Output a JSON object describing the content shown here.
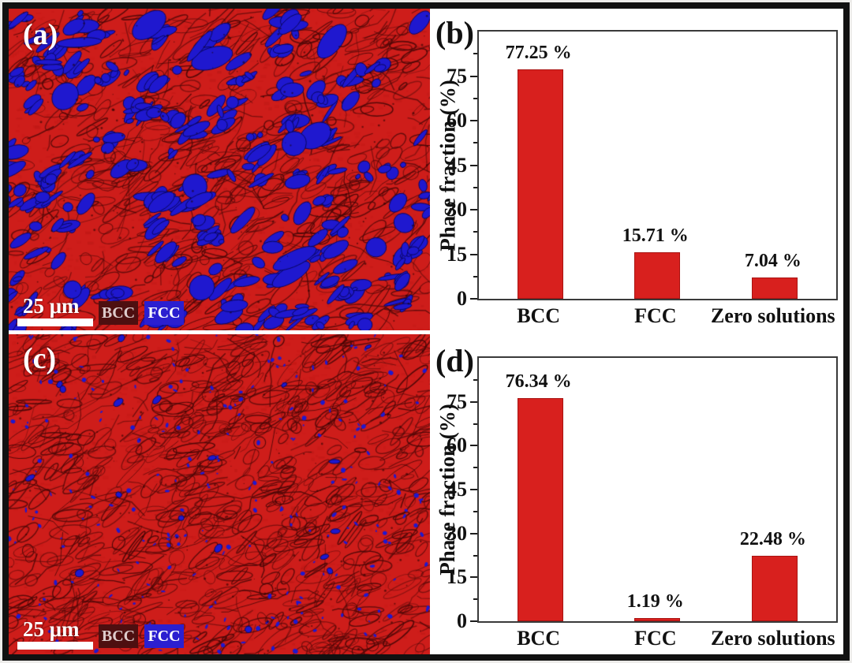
{
  "figure_caption_labels": {
    "a": "(a)",
    "b": "(b)",
    "c": "(c)",
    "d": "(d)"
  },
  "panels": {
    "a": {
      "label": "(a)",
      "type": "ebsd-phase-map",
      "scale_bar_text": "25 μm",
      "legend": [
        {
          "label": "BCC",
          "bg": "#4e0f10",
          "text_color": "#decccc"
        },
        {
          "label": "FCC",
          "bg": "#2b1fd0",
          "text_color": "#ffffff"
        }
      ],
      "map_colors": {
        "matrix_red": "#ce1d1a",
        "boundary_dark": "#4a0707",
        "fcc_blue": "#1f18cf",
        "fcc_dark": "#0a065e"
      },
      "fcc_density": "high"
    },
    "c": {
      "label": "(c)",
      "type": "ebsd-phase-map",
      "scale_bar_text": "25 μm",
      "legend": [
        {
          "label": "BCC",
          "bg": "#4e0f10",
          "text_color": "#decccc"
        },
        {
          "label": "FCC",
          "bg": "#2b1fd0",
          "text_color": "#ffffff"
        }
      ],
      "map_colors": {
        "matrix_red": "#ce1d1a",
        "boundary_dark": "#4a0707",
        "fcc_blue": "#1f18cf",
        "fcc_dark": "#0a065e"
      },
      "fcc_density": "low"
    },
    "b": {
      "label": "(b)",
      "type": "bar-chart"
    },
    "d": {
      "label": "(d)",
      "type": "bar-chart"
    }
  },
  "chart_data": [
    {
      "type": "bar",
      "panel": "b",
      "title": "",
      "categories": [
        "BCC",
        "FCC",
        "Zero solutions"
      ],
      "values": [
        77.25,
        15.71,
        7.04
      ],
      "value_labels": [
        "77.25 %",
        "15.71 %",
        "7.04 %"
      ],
      "xlabel": "",
      "ylabel": "Phase fraction (%)",
      "ylim": [
        0,
        90
      ],
      "yticks": [
        0,
        15,
        30,
        45,
        60,
        75
      ],
      "minor_tick_step": 7.5,
      "grid": false,
      "legend_position": "none",
      "bar_color": "#d8201e",
      "bar_edge_color": "#a91311"
    },
    {
      "type": "bar",
      "panel": "d",
      "title": "",
      "categories": [
        "BCC",
        "FCC",
        "Zero solutions"
      ],
      "values": [
        76.34,
        1.19,
        22.48
      ],
      "value_labels": [
        "76.34 %",
        "1.19 %",
        "22.48 %"
      ],
      "xlabel": "",
      "ylabel": "Phase fraction (%)",
      "ylim": [
        0,
        90
      ],
      "yticks": [
        0,
        15,
        30,
        45,
        60,
        75
      ],
      "minor_tick_step": 7.5,
      "grid": false,
      "legend_position": "none",
      "bar_color": "#d8201e",
      "bar_edge_color": "#a91311"
    }
  ]
}
